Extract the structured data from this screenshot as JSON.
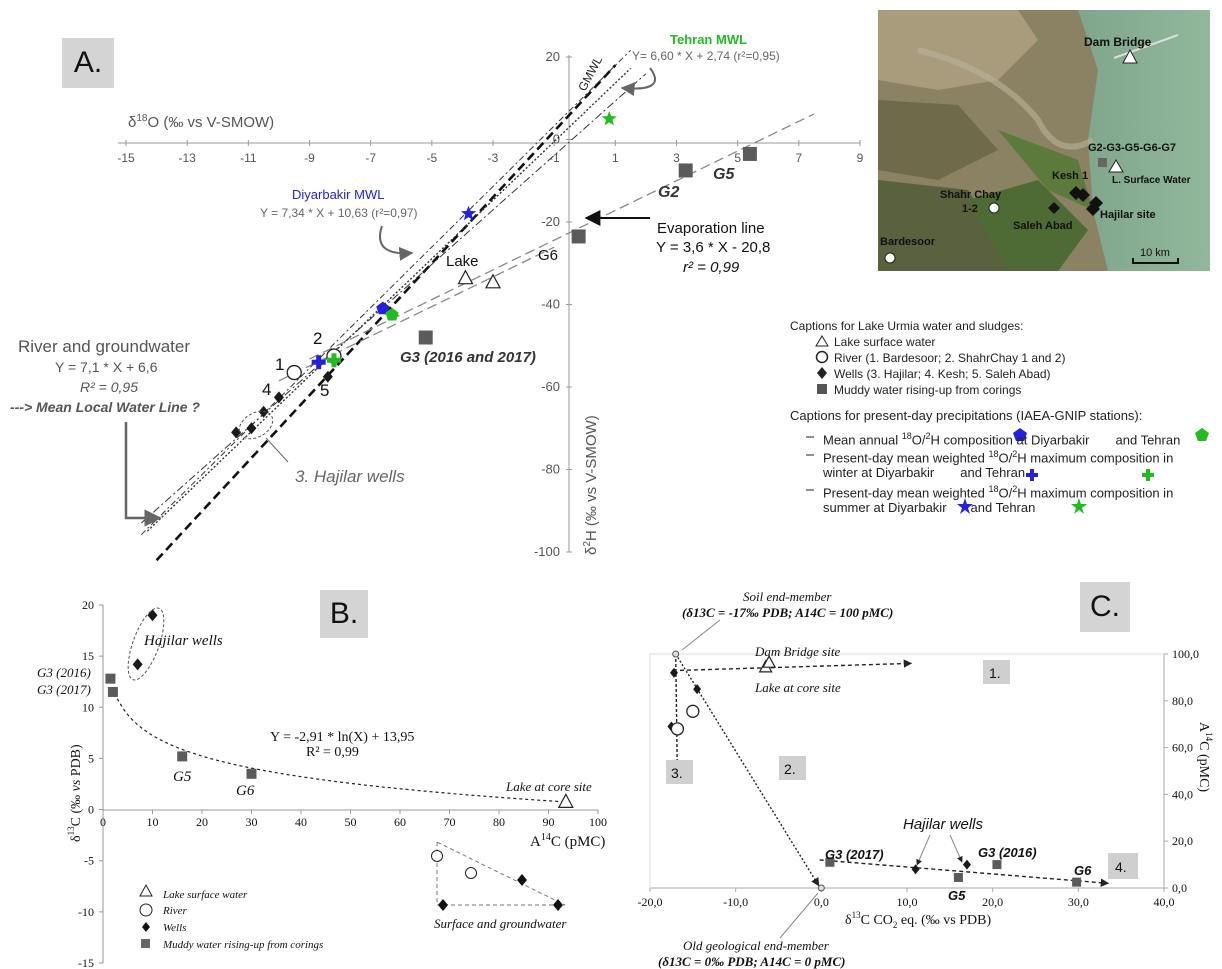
{
  "panels": {
    "a_label": "A.",
    "b_label": "B.",
    "c_label": "C."
  },
  "map": {
    "labels": {
      "dam_bridge": "Dam Bridge",
      "g_sites": "G2-G3-G5-G6-G7",
      "l_surface": "L. Surface Water",
      "kesh": "Kesh 1",
      "shahr_chay": "Shahr Chay",
      "shahr_chay_num": "1-2",
      "saleh_abad": "Saleh Abad",
      "hajilar": "Hajilar site",
      "bardesoor": "Bardesoor",
      "scale": "10 km"
    }
  },
  "captions_a": {
    "title1": "Captions for Lake Urmia water and sludges:",
    "items1": [
      "Lake surface water",
      "River (1. Bardesoor; 2. ShahrChay 1 and 2)",
      "Wells (3. Hajilar; 4. Kesh; 5. Saleh Abad)",
      "Muddy water rising-up from corings"
    ],
    "title2": "Captions for present-day precipitations (IAEA-GNIP stations):",
    "p1a": "Mean annual ",
    "p1b": "O/",
    "p1c": "H composition at Diyarbakir",
    "p1d": "and Tehran",
    "p2a": "Present-day mean weighted ",
    "p2b": "O/",
    "p2c": "H maximum composition in",
    "p2d": "winter at Diyarbakir",
    "p2e": "and Tehran",
    "p3a": "Present-day mean weighted ",
    "p3b": "O/",
    "p3c": "H maximum composition in",
    "p3d": "summer at Diyarbakir",
    "p3e": "and Tehran",
    "sup18": "18",
    "sup2": "2"
  },
  "captions_b": [
    "Lake surface water",
    "River",
    "Wells",
    "Muddy water rising-up from corings"
  ],
  "colors": {
    "muddy": "#595959",
    "wells": "#1a1a1a",
    "diyarbakir": "#2222dd",
    "tehran": "#22bb22",
    "grey_text": "#666666"
  },
  "chart_data": [
    {
      "type": "scatter",
      "panel": "A",
      "xlabel": "δ18O (‰ vs V-SMOW)",
      "ylabel": "δ2H (‰ vs V-SMOW)",
      "xlim": [
        -15,
        10
      ],
      "ylim": [
        -100,
        20
      ],
      "x_ticks": [
        -15,
        -13,
        -11,
        -9,
        -7,
        -5,
        -3,
        -1,
        1,
        3,
        5,
        7,
        9
      ],
      "y_ticks": [
        20,
        0,
        -20,
        -40,
        -60,
        -80,
        -100
      ],
      "lines": [
        {
          "name": "GMWL",
          "style": "bold dashed",
          "slope": 8,
          "intercept": 10,
          "x_range": [
            -14,
            1
          ]
        },
        {
          "name": "Tehran MWL",
          "equation": "Y= 6,60 * X + 2,74 (r²=0,95)",
          "slope": 6.6,
          "intercept": 2.74,
          "x_range": [
            -14.5,
            2
          ]
        },
        {
          "name": "Diyarbakir MWL",
          "equation": "Y = 7,34 * X + 10,63 (r²=0,97)",
          "slope": 7.34,
          "intercept": 10.63,
          "x_range": [
            -14.5,
            1.5
          ]
        },
        {
          "name": "River and groundwater",
          "equation": "Y = 7,1 * X + 6,6",
          "r2": "R² = 0,95",
          "slope": 7.1,
          "intercept": 6.6,
          "x_range": [
            -14.3,
            1.5
          ]
        },
        {
          "name": "Evaporation line",
          "equation": "Y = 3,6 * X - 20,8",
          "r2": "r² = 0,99",
          "slope": 3.6,
          "intercept": -20.8,
          "x_range": [
            -9,
            7.5
          ]
        },
        {
          "name": "lower dashed",
          "slope": 3.6,
          "intercept": -22.5,
          "x_range": [
            -10,
            -1
          ]
        }
      ],
      "series": [
        {
          "name": "Lake surface water",
          "marker": "triangle",
          "points": [
            [
              -3.9,
              -33.5
            ],
            [
              -3.0,
              -34.5
            ]
          ]
        },
        {
          "name": "River",
          "marker": "circle",
          "points": [
            [
              -9.5,
              -56.5
            ],
            [
              -8.2,
              -52.5
            ]
          ]
        },
        {
          "name": "Wells",
          "marker": "diamond",
          "points": [
            [
              -10.0,
              -62.5
            ],
            [
              -10.5,
              -66
            ],
            [
              -10.9,
              -70
            ],
            [
              -11.4,
              -71
            ],
            [
              -8.4,
              -57.5
            ]
          ]
        },
        {
          "name": "Muddy water rising-up from corings",
          "marker": "square",
          "points": [
            [
              3.3,
              -7.5
            ],
            [
              5.4,
              -3.5
            ],
            [
              -0.2,
              -23.5
            ],
            [
              -5.2,
              -48
            ]
          ]
        },
        {
          "name": "Diyarbakir",
          "marker": "blue",
          "points": [
            [
              -6.6,
              -41
            ],
            [
              -8.7,
              -54
            ],
            [
              -3.8,
              -18
            ]
          ]
        },
        {
          "name": "Tehran",
          "marker": "green",
          "points": [
            [
              -6.3,
              -42.5
            ],
            [
              -8.2,
              -53.5
            ],
            [
              0.8,
              5
            ]
          ]
        }
      ],
      "annotations": {
        "gmwl": "GMWL",
        "tehran_title": "Tehran MWL",
        "tehran_eq": "Y= 6,60 * X + 2,74 (r²=0,95)",
        "diyarbakir_title": "Diyarbakir MWL",
        "diyarbakir_eq": "Y = 7,34 * X + 10,63 (r²=0,97)",
        "evap_title": "Evaporation line",
        "evap_eq": "Y = 3,6 * X - 20,8",
        "evap_r2": "r² = 0,99",
        "river_title": "River and groundwater",
        "river_eq": "Y = 7,1 * X + 6,6",
        "river_r2": "R² = 0,95",
        "river_note": "---> Mean Local Water Line ?",
        "hajilar": "3. Hajilar wells",
        "lake": "Lake",
        "g2": "G2",
        "g5": "G5",
        "g6": "G6",
        "g3": "G3 (2016 and 2017)",
        "n1": "1",
        "n2": "2",
        "n4": "4",
        "n5": "5"
      }
    },
    {
      "type": "scatter",
      "panel": "B",
      "xlabel": "A14C (pMC)",
      "ylabel": "δ13C (‰ vs PDB)",
      "xlim": [
        0,
        100
      ],
      "ylim": [
        -15,
        20
      ],
      "x_ticks": [
        0,
        10,
        20,
        30,
        40,
        50,
        60,
        70,
        80,
        90,
        100
      ],
      "y_ticks": [
        20,
        15,
        10,
        5,
        0,
        -5,
        -10,
        -15
      ],
      "fit": {
        "equation": "Y = -2,91 * ln(X) + 13,95",
        "r2": "R² = 0,99"
      },
      "series": [
        {
          "name": "Wells",
          "marker": "diamond",
          "points": [
            [
              10,
              19
            ],
            [
              7,
              14.2
            ]
          ]
        },
        {
          "name": "Muddy water rising-up from corings",
          "marker": "square",
          "points": [
            [
              1.5,
              12.8
            ],
            [
              2,
              11.5
            ],
            [
              16,
              5.2
            ],
            [
              30,
              3.5
            ]
          ]
        },
        {
          "name": "Lake surface water",
          "marker": "triangle",
          "points": [
            [
              93.5,
              0.8
            ]
          ]
        }
      ],
      "annotations": {
        "hajilar": "Hajilar wells",
        "g3_2016": "G3 (2016)",
        "g3_2017": "G3 (2017)",
        "g5": "G5",
        "g6": "G6",
        "lake": "Lake at core site",
        "inset": "Surface and groundwater"
      }
    },
    {
      "type": "scatter",
      "panel": "C",
      "xlabel": "δ13C CO2 eq. (‰ vs PDB)",
      "ylabel": "A14C (pMC)",
      "xlim": [
        -20,
        40
      ],
      "ylim": [
        0,
        100
      ],
      "x_ticks": [
        -20,
        -10,
        0,
        10,
        20,
        30,
        40
      ],
      "y_ticks": [
        0,
        20,
        40,
        60,
        80,
        100
      ],
      "x_tick_labels": [
        "-20,0",
        "-10,0",
        "0,0",
        "10,0",
        "20,0",
        "30,0",
        "40,0"
      ],
      "y_tick_labels": [
        "0,0",
        "20,0",
        "40,0",
        "60,0",
        "80,0",
        "100,0"
      ],
      "series": [
        {
          "name": "Soil end-member",
          "marker": "small-circle",
          "points": [
            [
              -17,
              100
            ]
          ]
        },
        {
          "name": "Old geological end-member",
          "marker": "small-circle",
          "points": [
            [
              0,
              0
            ]
          ]
        },
        {
          "name": "Wells",
          "marker": "diamond",
          "points": [
            [
              -17.2,
              92
            ],
            [
              -14.5,
              85
            ],
            [
              -17.5,
              69
            ],
            [
              11,
              8
            ],
            [
              17,
              10
            ]
          ]
        },
        {
          "name": "River",
          "marker": "circle",
          "points": [
            [
              -15,
              75.5
            ],
            [
              -16.8,
              68
            ]
          ]
        },
        {
          "name": "Lake surface water",
          "marker": "triangle",
          "points": [
            [
              -6.5,
              94.5
            ],
            [
              -6.1,
              96.5
            ]
          ]
        },
        {
          "name": "Muddy water rising-up from corings",
          "marker": "square",
          "points": [
            [
              1,
              11
            ],
            [
              20.5,
              10
            ],
            [
              16,
              4.5
            ],
            [
              29.8,
              2.5
            ]
          ]
        }
      ],
      "annotations": {
        "soil_title": "Soil end-member",
        "soil_eq": "(δ13C = -17‰ PDB; A14C = 100 pMC)",
        "old_title": "Old geological end-member",
        "old_eq": "(δ13C = 0‰ PDB; A14C = 0 pMC)",
        "dam": "Dam Bridge site",
        "lake": "Lake at core site",
        "hajilar": "Hajilar wells",
        "g3_2017": "G3 (2017)",
        "g3_2016": "G3 (2016)",
        "g5": "G5",
        "g6": "G6",
        "box1": "1.",
        "box2": "2.",
        "box3": "3.",
        "box4": "4."
      }
    }
  ]
}
